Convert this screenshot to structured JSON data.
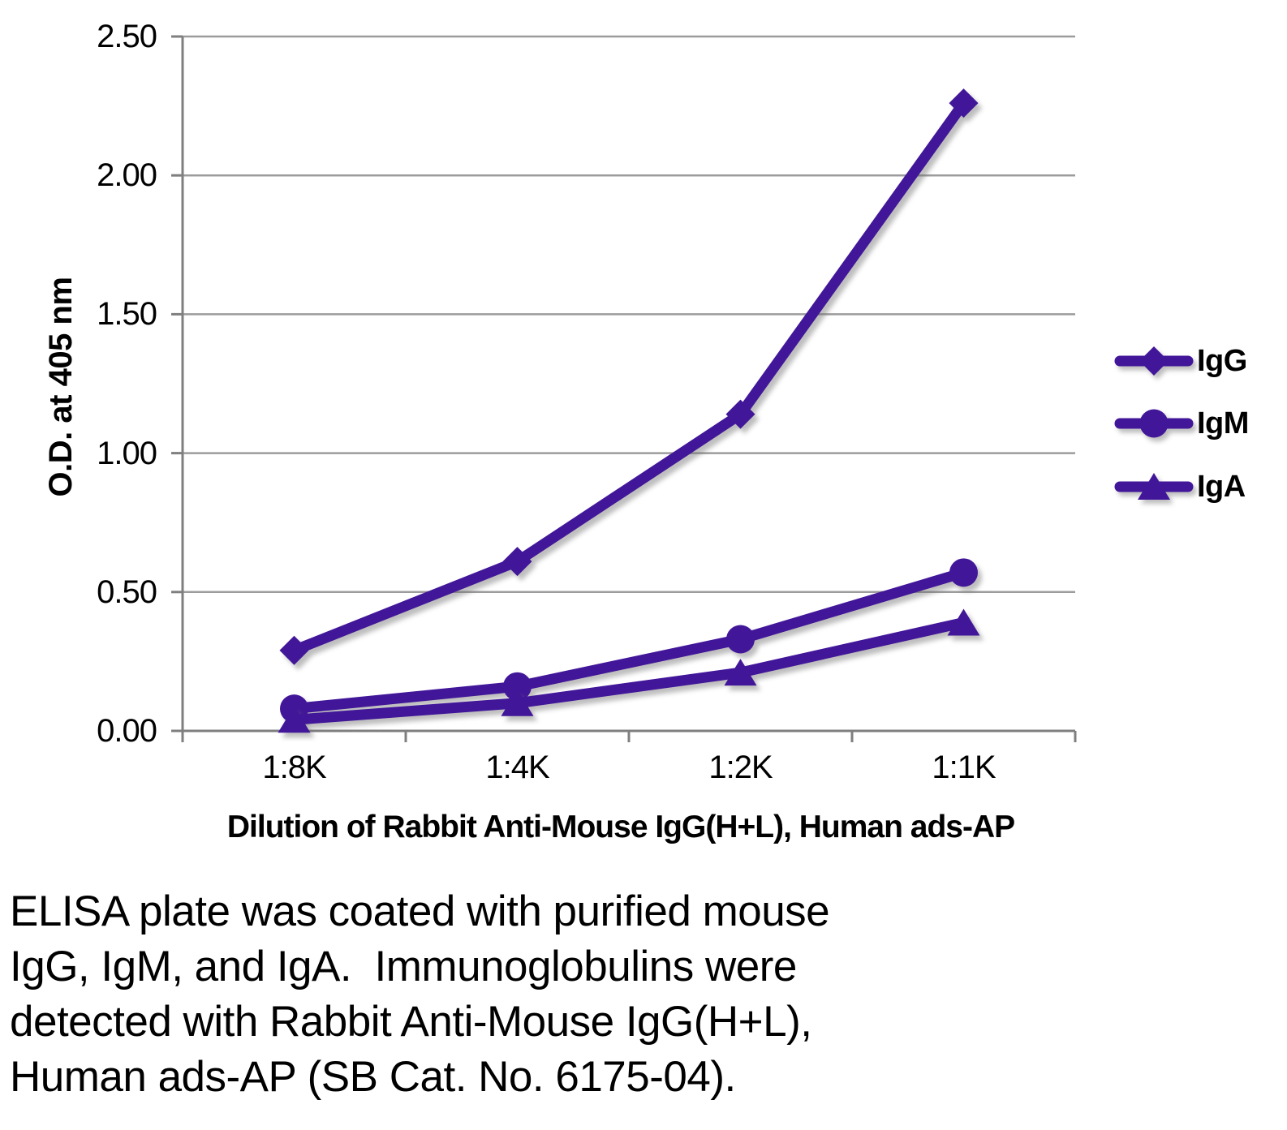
{
  "chart_data": {
    "type": "line",
    "title": "",
    "xlabel": "Dilution of Rabbit Anti-Mouse IgG(H+L), Human ads-AP",
    "ylabel": "O.D. at 405 nm",
    "categories": [
      "1:8K",
      "1:4K",
      "1:2K",
      "1:1K"
    ],
    "ylim": [
      0,
      2.5
    ],
    "ytick_step": 0.5,
    "ytick_labels": [
      "0.00",
      "0.50",
      "1.00",
      "1.50",
      "2.00",
      "2.50"
    ],
    "grid": true,
    "legend_position": "right",
    "line_color": "#411699",
    "grid_color": "#9C9C9C",
    "axis_color": "#7F7F7F",
    "series": [
      {
        "name": "IgG",
        "marker": "diamond",
        "values": [
          0.29,
          0.61,
          1.14,
          2.26
        ]
      },
      {
        "name": "IgM",
        "marker": "circle",
        "values": [
          0.08,
          0.16,
          0.33,
          0.57
        ]
      },
      {
        "name": "IgA",
        "marker": "triangle",
        "values": [
          0.04,
          0.1,
          0.21,
          0.39
        ]
      }
    ]
  },
  "caption": {
    "lines": [
      "ELISA plate was coated with purified mouse",
      "IgG, IgM, and IgA.  Immunoglobulins were",
      "detected with Rabbit Anti-Mouse IgG(H+L),",
      "Human ads-AP (SB Cat. No. 6175-04)."
    ]
  }
}
